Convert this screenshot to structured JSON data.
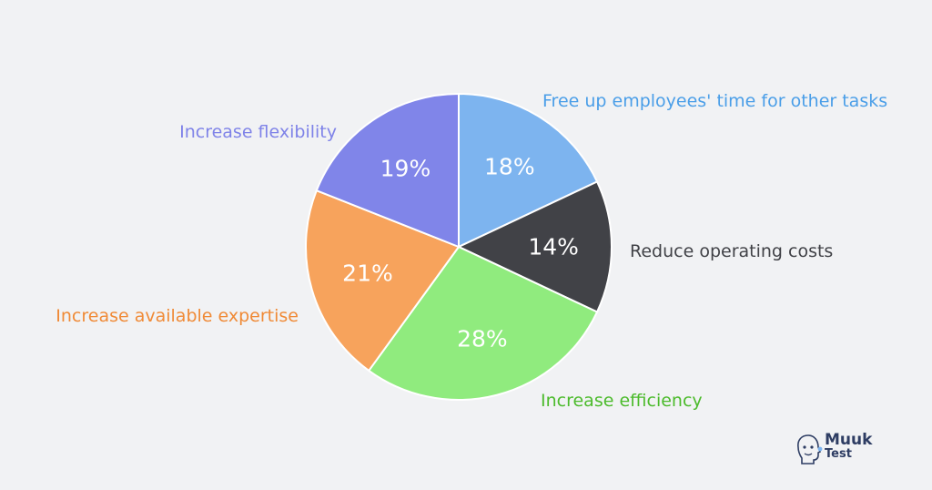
{
  "chart_data": {
    "type": "pie",
    "title": "",
    "slices": [
      {
        "label": "Free up employees' time for other tasks",
        "value": 18,
        "value_label": "18%",
        "color": "#7db4ef"
      },
      {
        "label": "Reduce operating costs",
        "value": 14,
        "value_label": "14%",
        "color": "#414247"
      },
      {
        "label": "Increase efficiency",
        "value": 28,
        "value_label": "28%",
        "color": "#90eb7e"
      },
      {
        "label": "Increase available expertise",
        "value": 21,
        "value_label": "21%",
        "color": "#f7a35c"
      },
      {
        "label": "Increase flexibility",
        "value": 19,
        "value_label": "19%",
        "color": "#8085e9"
      }
    ],
    "label_colors": [
      "#4a9ee8",
      "#414247",
      "#4cbb2c",
      "#f08a36",
      "#7f83e8"
    ],
    "start": "top",
    "direction": "clockwise"
  },
  "logo": {
    "line1": "Muuk",
    "line2": "Test",
    "icon": "face-profile-icon"
  }
}
